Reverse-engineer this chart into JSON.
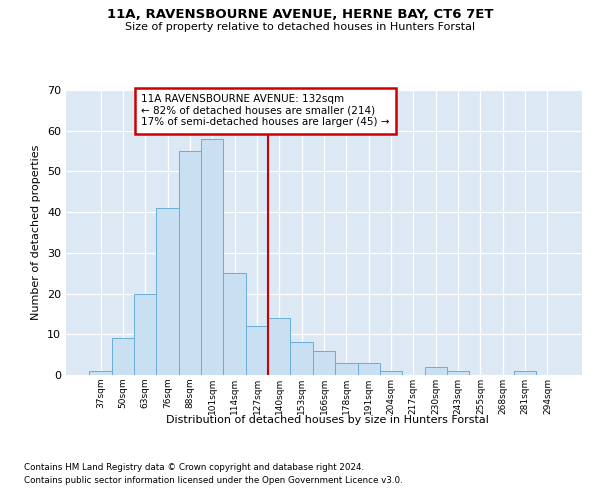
{
  "title1": "11A, RAVENSBOURNE AVENUE, HERNE BAY, CT6 7ET",
  "title2": "Size of property relative to detached houses in Hunters Forstal",
  "xlabel": "Distribution of detached houses by size in Hunters Forstal",
  "ylabel": "Number of detached properties",
  "footnote1": "Contains HM Land Registry data © Crown copyright and database right 2024.",
  "footnote2": "Contains public sector information licensed under the Open Government Licence v3.0.",
  "annotation_line1": "11A RAVENSBOURNE AVENUE: 132sqm",
  "annotation_line2": "← 82% of detached houses are smaller (214)",
  "annotation_line3": "17% of semi-detached houses are larger (45) →",
  "bar_labels": [
    "37sqm",
    "50sqm",
    "63sqm",
    "76sqm",
    "88sqm",
    "101sqm",
    "114sqm",
    "127sqm",
    "140sqm",
    "153sqm",
    "166sqm",
    "178sqm",
    "191sqm",
    "204sqm",
    "217sqm",
    "230sqm",
    "243sqm",
    "255sqm",
    "268sqm",
    "281sqm",
    "294sqm"
  ],
  "bar_values": [
    1,
    9,
    20,
    41,
    55,
    58,
    25,
    12,
    14,
    8,
    6,
    3,
    3,
    1,
    0,
    2,
    1,
    0,
    0,
    1,
    0
  ],
  "bar_color": "#c9dff2",
  "bar_edge_color": "#6aadd5",
  "vline_index": 7,
  "vline_color": "#cc0000",
  "background_color": "#ffffff",
  "plot_bg_color": "#dce9f5",
  "grid_color": "#ffffff",
  "annotation_box_color": "#ffffff",
  "annotation_box_edge": "#cc0000",
  "ylim": [
    0,
    70
  ],
  "yticks": [
    0,
    10,
    20,
    30,
    40,
    50,
    60,
    70
  ]
}
